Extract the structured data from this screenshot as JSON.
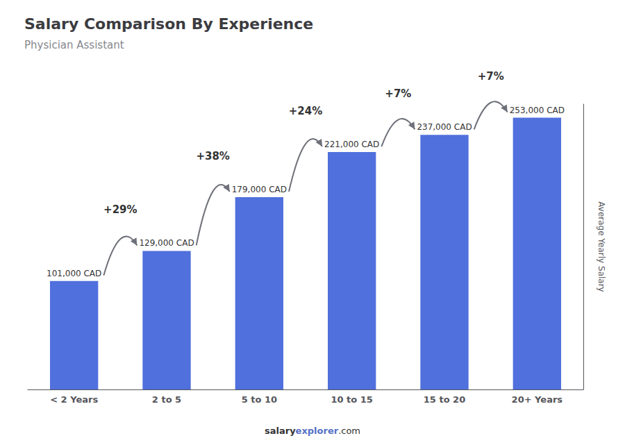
{
  "chart_data": {
    "type": "bar",
    "title": "Salary Comparison By Experience",
    "subtitle": "Physician Assistant",
    "ylabel": "Average Yearly Salary",
    "categories": [
      "< 2 Years",
      "2 to 5",
      "5 to 10",
      "10 to 15",
      "15 to 20",
      "20+ Years"
    ],
    "values": [
      101000,
      129000,
      179000,
      221000,
      237000,
      253000
    ],
    "value_labels": [
      "101,000 CAD",
      "129,000 CAD",
      "179,000 CAD",
      "221,000 CAD",
      "237,000 CAD",
      "253,000 CAD"
    ],
    "data_labels": true,
    "ylim": [
      0,
      265650
    ],
    "tick_labels": "x",
    "grid": false,
    "annotations": [
      {
        "text": "+29%",
        "from": "< 2 Years",
        "to": "2 to 5"
      },
      {
        "text": "+38%",
        "from": "2 to 5",
        "to": "5 to 10"
      },
      {
        "text": "+24%",
        "from": "5 to 10",
        "to": "10 to 15"
      },
      {
        "text": "+7%",
        "from": "10 to 15",
        "to": "15 to 20"
      },
      {
        "text": "+7%",
        "from": "15 to 20",
        "to": "20+ Years"
      }
    ],
    "footer": [
      "salary",
      "explorer",
      ".com"
    ]
  }
}
